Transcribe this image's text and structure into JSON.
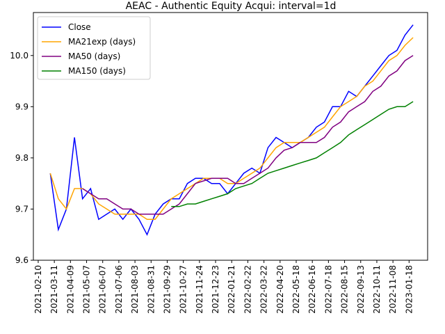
{
  "chart_data": {
    "type": "line",
    "title": "AEAC - Authentic Equity Acqui: interval=1d",
    "x": [
      15,
      25,
      35,
      45,
      55,
      65,
      75,
      85,
      95,
      105,
      115,
      125,
      135,
      145,
      155,
      165,
      175,
      185,
      195,
      205,
      215,
      225,
      235,
      245,
      255,
      265,
      275,
      285,
      295,
      305,
      315,
      325,
      335,
      345,
      355,
      365,
      375,
      385,
      395,
      405,
      415,
      425,
      435,
      445,
      455,
      465
    ],
    "series": [
      {
        "name": "Close",
        "color": "#0000ff",
        "values": [
          9.77,
          9.66,
          9.7,
          9.84,
          9.72,
          9.74,
          9.68,
          9.69,
          9.7,
          9.68,
          9.7,
          9.68,
          9.65,
          9.69,
          9.71,
          9.72,
          9.72,
          9.75,
          9.76,
          9.76,
          9.75,
          9.75,
          9.73,
          9.75,
          9.77,
          9.78,
          9.77,
          9.82,
          9.84,
          9.83,
          9.82,
          9.83,
          9.84,
          9.86,
          9.87,
          9.9,
          9.9,
          9.93,
          9.92,
          9.94,
          9.96,
          9.98,
          10.0,
          10.01,
          10.04,
          10.06
        ]
      },
      {
        "name": "MA21exp (days)",
        "color": "#ffa500",
        "values": [
          9.77,
          9.72,
          9.7,
          9.74,
          9.74,
          9.73,
          9.71,
          9.7,
          9.69,
          9.69,
          9.69,
          9.69,
          9.68,
          9.68,
          9.7,
          9.72,
          9.73,
          9.74,
          9.75,
          9.76,
          9.76,
          9.76,
          9.75,
          9.75,
          9.76,
          9.77,
          9.78,
          9.8,
          9.82,
          9.83,
          9.83,
          9.83,
          9.84,
          9.85,
          9.86,
          9.88,
          9.9,
          9.91,
          9.92,
          9.94,
          9.95,
          9.97,
          9.99,
          10.0,
          10.02,
          10.035
        ]
      },
      {
        "name": "MA50 (days)",
        "color": "#800080",
        "values": [
          null,
          null,
          null,
          null,
          9.74,
          9.73,
          9.72,
          9.72,
          9.71,
          9.7,
          9.7,
          9.69,
          9.69,
          9.69,
          9.69,
          9.7,
          9.71,
          9.73,
          9.75,
          9.755,
          9.76,
          9.76,
          9.76,
          9.75,
          9.75,
          9.76,
          9.77,
          9.78,
          9.8,
          9.815,
          9.82,
          9.83,
          9.83,
          9.83,
          9.84,
          9.86,
          9.87,
          9.89,
          9.9,
          9.91,
          9.93,
          9.94,
          9.96,
          9.97,
          9.99,
          10.0
        ]
      },
      {
        "name": "MA150 (days)",
        "color": "#008000",
        "values": [
          null,
          null,
          null,
          null,
          null,
          null,
          null,
          null,
          null,
          null,
          null,
          null,
          null,
          null,
          null,
          9.705,
          9.705,
          9.71,
          9.71,
          9.715,
          9.72,
          9.725,
          9.73,
          9.74,
          9.745,
          9.75,
          9.76,
          9.77,
          9.775,
          9.78,
          9.785,
          9.79,
          9.795,
          9.8,
          9.81,
          9.82,
          9.83,
          9.845,
          9.855,
          9.865,
          9.875,
          9.885,
          9.895,
          9.9,
          9.9,
          9.91
        ]
      }
    ],
    "xlim": [
      -6,
      483
    ],
    "xticks": [
      {
        "value": 0,
        "label": "2021-02-10"
      },
      {
        "value": 20,
        "label": "2021-03-11"
      },
      {
        "value": 40,
        "label": "2021-04-09"
      },
      {
        "value": 60,
        "label": "2021-05-07"
      },
      {
        "value": 80,
        "label": "2021-06-07"
      },
      {
        "value": 100,
        "label": "2021-07-06"
      },
      {
        "value": 120,
        "label": "2021-08-03"
      },
      {
        "value": 140,
        "label": "2021-08-31"
      },
      {
        "value": 160,
        "label": "2021-09-29"
      },
      {
        "value": 180,
        "label": "2021-10-27"
      },
      {
        "value": 200,
        "label": "2021-11-24"
      },
      {
        "value": 220,
        "label": "2021-12-23"
      },
      {
        "value": 240,
        "label": "2022-01-21"
      },
      {
        "value": 260,
        "label": "2022-02-22"
      },
      {
        "value": 280,
        "label": "2022-03-22"
      },
      {
        "value": 300,
        "label": "2022-04-20"
      },
      {
        "value": 320,
        "label": "2022-05-18"
      },
      {
        "value": 340,
        "label": "2022-06-16"
      },
      {
        "value": 360,
        "label": "2022-07-18"
      },
      {
        "value": 380,
        "label": "2022-08-15"
      },
      {
        "value": 400,
        "label": "2022-09-13"
      },
      {
        "value": 420,
        "label": "2022-10-11"
      },
      {
        "value": 440,
        "label": "2022-11-08"
      },
      {
        "value": 460,
        "label": "2023-01-18"
      }
    ],
    "ylim": [
      9.6,
      10.084
    ],
    "yticks": [
      9.6,
      9.7,
      9.8,
      9.9,
      {
        "value": 10.0,
        "label": "10.0"
      }
    ],
    "legend": "upper left"
  }
}
